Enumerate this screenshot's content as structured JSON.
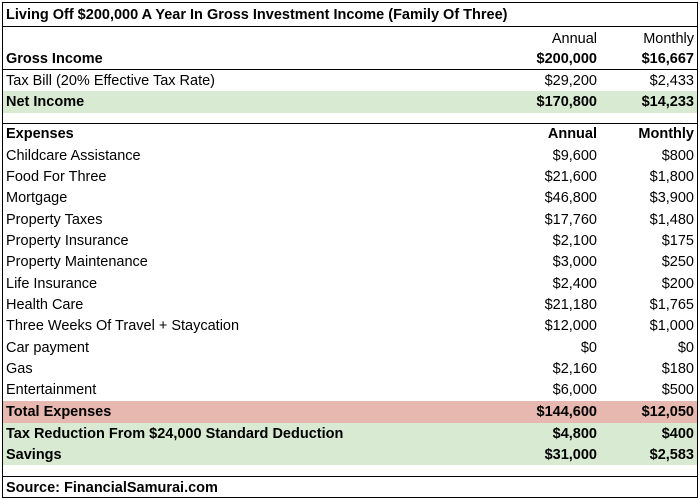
{
  "title": "Living Off $200,000 A Year In Gross Investment Income (Family Of Three)",
  "income_header": {
    "annual": "Annual",
    "monthly": "Monthly"
  },
  "gross_income": {
    "label": "Gross Income",
    "annual": "$200,000",
    "monthly": "$16,667"
  },
  "tax_bill": {
    "label": "Tax Bill (20% Effective Tax Rate)",
    "annual": "$29,200",
    "monthly": "$2,433"
  },
  "net_income": {
    "label": "Net Income",
    "annual": "$170,800",
    "monthly": "$14,233"
  },
  "expenses_header": {
    "label": "Expenses",
    "annual": "Annual",
    "monthly": "Monthly"
  },
  "expenses": [
    {
      "label": "Childcare Assistance",
      "annual": "$9,600",
      "monthly": "$800"
    },
    {
      "label": "Food For Three",
      "annual": "$21,600",
      "monthly": "$1,800"
    },
    {
      "label": "Mortgage",
      "annual": "$46,800",
      "monthly": "$3,900"
    },
    {
      "label": "Property Taxes",
      "annual": "$17,760",
      "monthly": "$1,480"
    },
    {
      "label": "Property Insurance",
      "annual": "$2,100",
      "monthly": "$175"
    },
    {
      "label": "Property Maintenance",
      "annual": "$3,000",
      "monthly": "$250"
    },
    {
      "label": "Life Insurance",
      "annual": "$2,400",
      "monthly": "$200"
    },
    {
      "label": "Health Care",
      "annual": "$21,180",
      "monthly": "$1,765"
    },
    {
      "label": "Three Weeks Of Travel + Staycation",
      "annual": "$12,000",
      "monthly": "$1,000"
    },
    {
      "label": "Car payment",
      "annual": "$0",
      "monthly": "$0"
    },
    {
      "label": "Gas",
      "annual": "$2,160",
      "monthly": "$180"
    },
    {
      "label": "Entertainment",
      "annual": "$6,000",
      "monthly": "$500"
    }
  ],
  "total_expenses": {
    "label": "Total Expenses",
    "annual": "$144,600",
    "monthly": "$12,050"
  },
  "tax_reduction": {
    "label": "Tax Reduction From $24,000 Standard Deduction",
    "annual": "$4,800",
    "monthly": "$400"
  },
  "savings": {
    "label": "Savings",
    "annual": "$31,000",
    "monthly": "$2,583"
  },
  "source": "Source: FinancialSamurai.com",
  "colors": {
    "green_band": "#d9ead3",
    "red_band": "#e6b8af"
  }
}
